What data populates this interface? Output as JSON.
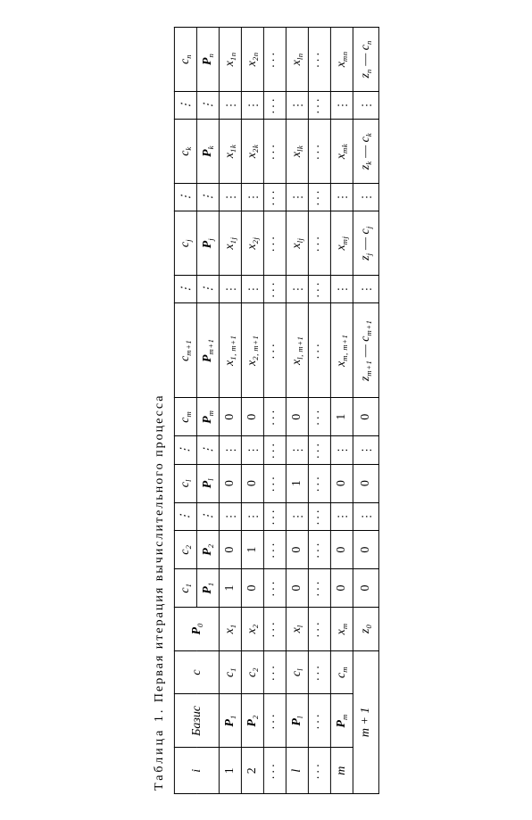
{
  "caption": {
    "lead": "Таблица 1.",
    "rest": "Первая итерация вычислительного процесса"
  },
  "head": {
    "i": "i",
    "basis": "Базис",
    "c": "c",
    "p0": "P",
    "cols": {
      "c1": "c",
      "c2": "c",
      "cl": "c",
      "cm": "c",
      "cmp1": "c",
      "cj": "c",
      "ck": "c",
      "cn": "c",
      "p1": "P",
      "p2": "P",
      "pl": "P",
      "pm": "P",
      "pmp1": "P",
      "pj": "P",
      "pk": "P",
      "pn": "P"
    },
    "sub": {
      "zero": "0",
      "one": "1",
      "two": "2",
      "l": "l",
      "m": "m",
      "mp1": "m+1",
      "j": "j",
      "k": "k",
      "n": "n"
    }
  },
  "rows": {
    "r1": {
      "i": "1",
      "basis": "P",
      "bsub": "1",
      "c": "c",
      "csub": "1",
      "p0": "x",
      "p0sub": "1",
      "c1": "1",
      "c2": "0",
      "cl": "0",
      "cm": "0",
      "mp1": "x",
      "mp1sub": "1, m+1",
      "j": "x",
      "jsub": "1j",
      "k": "x",
      "ksub": "1k",
      "n": "x",
      "nsub": "1n"
    },
    "r2": {
      "i": "2",
      "basis": "P",
      "bsub": "2",
      "c": "c",
      "csub": "2",
      "p0": "x",
      "p0sub": "2",
      "c1": "0",
      "c2": "1",
      "cl": "0",
      "cm": "0",
      "mp1": "x",
      "mp1sub": "2, m+1",
      "j": "x",
      "jsub": "2j",
      "k": "x",
      "ksub": "2k",
      "n": "x",
      "nsub": "2n"
    },
    "rl": {
      "i": "l",
      "basis": "P",
      "bsub": "l",
      "c": "c",
      "csub": "l",
      "p0": "x",
      "p0sub": "l",
      "c1": "0",
      "c2": "0",
      "cl": "1",
      "cm": "0",
      "mp1": "x",
      "mp1sub": "l, m+1",
      "j": "x",
      "jsub": "lj",
      "k": "x",
      "ksub": "lk",
      "n": "x",
      "nsub": "ln"
    },
    "rm": {
      "i": "m",
      "basis": "P",
      "bsub": "m",
      "c": "c",
      "csub": "m",
      "p0": "x",
      "p0sub": "m",
      "c1": "0",
      "c2": "0",
      "cl": "0",
      "cm": "1",
      "mp1": "x",
      "mp1sub": "m, m+1",
      "j": "x",
      "jsub": "mj",
      "k": "x",
      "ksub": "mk",
      "n": "x",
      "nsub": "mn"
    }
  },
  "zrow": {
    "i": "m + 1",
    "p0": "z",
    "p0sub": "0",
    "c1": "0",
    "c2": "0",
    "cl": "0",
    "cm": "0",
    "mp1a": "z",
    "mp1asub": "m+1",
    "mp1m": " — ",
    "mp1b": "c",
    "mp1bsub": "m+1",
    "ja": "z",
    "jasub": "j",
    "jm": " — ",
    "jb": "c",
    "jbsub": "j",
    "ka": "z",
    "kasub": "k",
    "km": " — ",
    "kb": "c",
    "kbsub": "k",
    "na": "z",
    "nasub": "n",
    "nm": " — ",
    "nb": "c",
    "nbsub": "n"
  },
  "dots": {
    "v": "⋮",
    "h": "···"
  }
}
